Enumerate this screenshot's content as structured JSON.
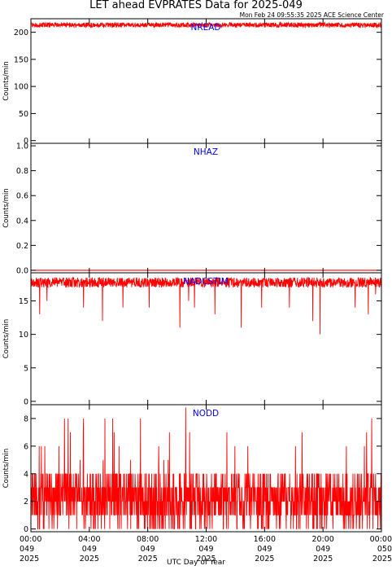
{
  "title": "LET ahead EVPRATES Data for 2025-049",
  "timestamp": "Mon Feb 24 09:55:35 2025 ACE Science Center",
  "xlabel": "UTC Day of Year",
  "colors": {
    "trace": "#ff0000",
    "panel_label": "#0000ff",
    "axes": "#000000"
  },
  "chart_data": [
    {
      "type": "line",
      "name": "NREAD",
      "ylabel": "Counts/min",
      "ylim": [
        -5,
        225
      ],
      "yticks": [
        0,
        50,
        100,
        150,
        200
      ],
      "ytick_labels": [
        "0",
        "50",
        "100",
        "150",
        "200"
      ],
      "noise": {
        "kind": "band",
        "min": 209,
        "max": 218
      }
    },
    {
      "type": "line",
      "name": "NHAZ",
      "ylabel": "Counts/min",
      "ylim": [
        -0.02,
        1.02
      ],
      "yticks": [
        0,
        0.2,
        0.4,
        0.6,
        0.8,
        1.0
      ],
      "ytick_labels": [
        "0.0",
        "0.2",
        "0.4",
        "0.6",
        "0.8",
        "1.0"
      ],
      "noise": {
        "kind": "constant",
        "value": 0
      }
    },
    {
      "type": "line",
      "name": "NADCSTIM",
      "ylabel": "Counts/min",
      "ylim": [
        -0.5,
        19.2
      ],
      "yticks": [
        0,
        5,
        10,
        15
      ],
      "ytick_labels": [
        "0",
        "5",
        "10",
        "15"
      ],
      "noise": {
        "kind": "band",
        "min": 17,
        "max": 18.5
      },
      "dips": [
        {
          "hour": 0.6,
          "value": 13
        },
        {
          "hour": 1.1,
          "value": 15
        },
        {
          "hour": 3.6,
          "value": 14
        },
        {
          "hour": 4.9,
          "value": 12
        },
        {
          "hour": 6.3,
          "value": 14
        },
        {
          "hour": 8.1,
          "value": 14
        },
        {
          "hour": 10.2,
          "value": 11
        },
        {
          "hour": 10.8,
          "value": 15
        },
        {
          "hour": 11.2,
          "value": 14
        },
        {
          "hour": 12.6,
          "value": 13
        },
        {
          "hour": 14.4,
          "value": 11
        },
        {
          "hour": 15.8,
          "value": 14
        },
        {
          "hour": 17.7,
          "value": 14
        },
        {
          "hour": 19.3,
          "value": 12
        },
        {
          "hour": 19.8,
          "value": 10
        },
        {
          "hour": 22.2,
          "value": 14
        },
        {
          "hour": 23.1,
          "value": 13
        },
        {
          "hour": 23.6,
          "value": 16
        }
      ]
    },
    {
      "type": "line",
      "name": "NODD",
      "ylabel": "Counts/min",
      "ylim": [
        -0.2,
        9.0
      ],
      "yticks": [
        0,
        2,
        4,
        6,
        8
      ],
      "ytick_labels": [
        "0",
        "2",
        "4",
        "6",
        "8"
      ],
      "noise": {
        "kind": "discrete",
        "min": 0,
        "max": 4,
        "spike_max": 8
      },
      "peak": {
        "hour": 10.6,
        "value": 8.8
      }
    }
  ],
  "x_axis": {
    "range_hours": [
      0,
      24
    ],
    "ticks": [
      {
        "hour": 0,
        "time": "00:00",
        "doy": "049",
        "year": "2025"
      },
      {
        "hour": 4,
        "time": "04:00",
        "doy": "049",
        "year": "2025"
      },
      {
        "hour": 8,
        "time": "08:00",
        "doy": "049",
        "year": "2025"
      },
      {
        "hour": 12,
        "time": "12:00",
        "doy": "049",
        "year": "2025"
      },
      {
        "hour": 16,
        "time": "16:00",
        "doy": "049",
        "year": "2025"
      },
      {
        "hour": 20,
        "time": "20:00",
        "doy": "049",
        "year": "2025"
      },
      {
        "hour": 24,
        "time": "00:00",
        "doy": "050",
        "year": "2025"
      }
    ]
  }
}
